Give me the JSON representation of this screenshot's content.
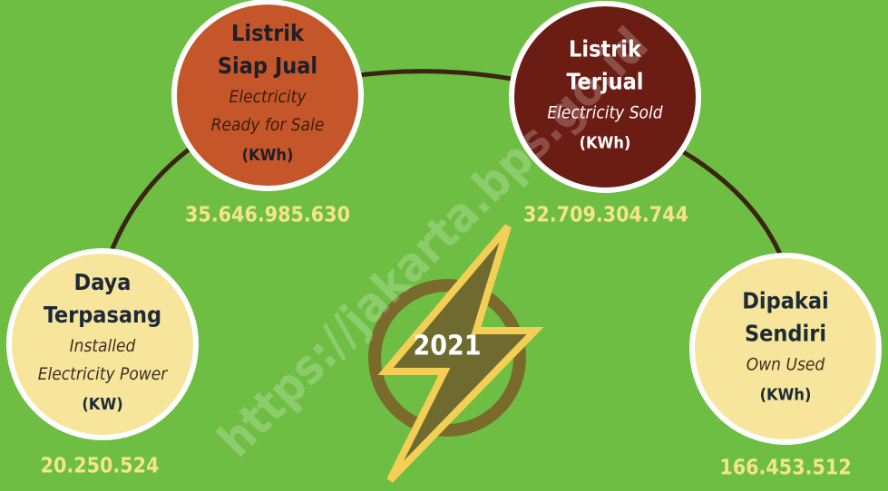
{
  "year": "2021",
  "watermark": "https://jakarta.bps.go.id",
  "nodes": [
    {
      "title": [
        "Daya",
        "Terpasang"
      ],
      "subtitle": [
        "Installed",
        "Electricity Power"
      ],
      "unit": "(KW)",
      "value": "20.250.524"
    },
    {
      "title": [
        "Listrik",
        "Siap Jual"
      ],
      "subtitle": [
        "Electricity",
        "Ready for Sale"
      ],
      "unit": "(KWh)",
      "value": "35.646.985.630"
    },
    {
      "title": [
        "Listrik",
        "Terjual"
      ],
      "subtitle": [
        "Electricity Sold"
      ],
      "unit": "(KWh)",
      "value": "32.709.304.744"
    },
    {
      "title": [
        "Dipakai",
        "Sendiri"
      ],
      "subtitle": [
        "Own Used"
      ],
      "unit": "(KWh)",
      "value": "166.453.512"
    }
  ]
}
